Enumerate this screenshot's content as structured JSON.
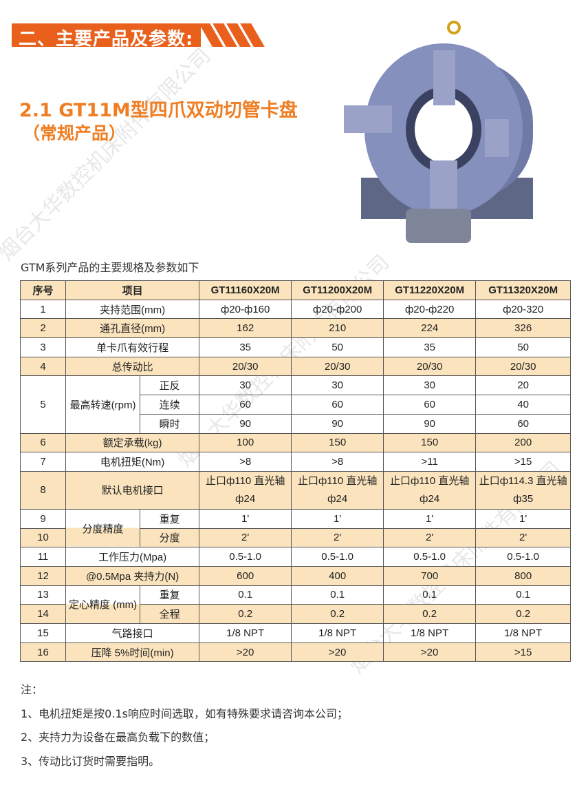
{
  "section_title": "二、主要产品及参数:",
  "product_title": "2.1 GT11M型四爪双动切管卡盘",
  "product_subtitle": "（常规产品）",
  "table_caption": "GTM系列产品的主要规格及参数如下",
  "table": {
    "headers": [
      "序号",
      "项目",
      "GT11160X20M",
      "GT11200X20M",
      "GT11220X20M",
      "GT11320X20M"
    ],
    "rows": [
      {
        "no": "1",
        "item": "夹持范围(mm)",
        "values": [
          "ф20-ф160",
          "ф20-ф200",
          "ф20-ф220",
          "ф20-320"
        ]
      },
      {
        "no": "2",
        "item": "通孔直径(mm)",
        "values": [
          "162",
          "210",
          "224",
          "326"
        ]
      },
      {
        "no": "3",
        "item": "单卡爪有效行程",
        "values": [
          "35",
          "50",
          "35",
          "50"
        ]
      },
      {
        "no": "4",
        "item": "总传动比",
        "values": [
          "20/30",
          "20/30",
          "20/30",
          "20/30"
        ]
      },
      {
        "no": "5",
        "group": "最高转速(rpm)",
        "subs": [
          {
            "sub": "正反",
            "values": [
              "30",
              "30",
              "30",
              "20"
            ]
          },
          {
            "sub": "连续",
            "values": [
              "60",
              "60",
              "60",
              "40"
            ]
          },
          {
            "sub": "瞬时",
            "values": [
              "90",
              "90",
              "90",
              "60"
            ]
          }
        ]
      },
      {
        "no": "6",
        "item": "额定承载(kg)",
        "values": [
          "100",
          "150",
          "150",
          "200"
        ]
      },
      {
        "no": "7",
        "item": "电机扭矩(Nm)",
        "values": [
          ">8",
          ">8",
          ">11",
          ">15"
        ]
      },
      {
        "no": "8",
        "item": "默认电机接口",
        "values": [
          "止口ф110 直光轴ф24",
          "止口ф110 直光轴ф24",
          "止口ф110 直光轴ф24",
          "止口ф114.3 直光轴ф35"
        ]
      },
      {
        "no": "9",
        "group": "分度精度",
        "sub": "重复",
        "values": [
          "1'",
          "1'",
          "1'",
          "1'"
        ]
      },
      {
        "no": "10",
        "sub": "分度",
        "values": [
          "2'",
          "2'",
          "2'",
          "2'"
        ]
      },
      {
        "no": "11",
        "item": "工作压力(Mpa)",
        "values": [
          "0.5-1.0",
          "0.5-1.0",
          "0.5-1.0",
          "0.5-1.0"
        ]
      },
      {
        "no": "12",
        "item": "@0.5Mpa 夹持力(N)",
        "values": [
          "600",
          "400",
          "700",
          "800"
        ]
      },
      {
        "no": "13",
        "group": "定心精度 (mm)",
        "sub": "重复",
        "values": [
          "0.1",
          "0.1",
          "0.1",
          "0.1"
        ]
      },
      {
        "no": "14",
        "sub": "全程",
        "values": [
          "0.2",
          "0.2",
          "0.2",
          "0.2"
        ]
      },
      {
        "no": "15",
        "item": "气路接口",
        "values": [
          "1/8 NPT",
          "1/8 NPT",
          "1/8 NPT",
          "1/8 NPT"
        ]
      },
      {
        "no": "16",
        "item": "压降 5%时间(min)",
        "values": [
          ">20",
          ">20",
          ">20",
          ">15"
        ]
      }
    ]
  },
  "notes": {
    "title": "注：",
    "items": [
      "1、电机扭矩是按0.1s响应时间选取，如有特殊要求请咨询本公司；",
      "2、夹持力为设备在最高负载下的数值；",
      "3、传动比订货时需要指明。"
    ]
  },
  "watermark": "烟台大华数控机床附件有限公司",
  "colors": {
    "accent": "#e8601c",
    "title": "#ef7d22",
    "row_tan": "#fbe4bd"
  }
}
